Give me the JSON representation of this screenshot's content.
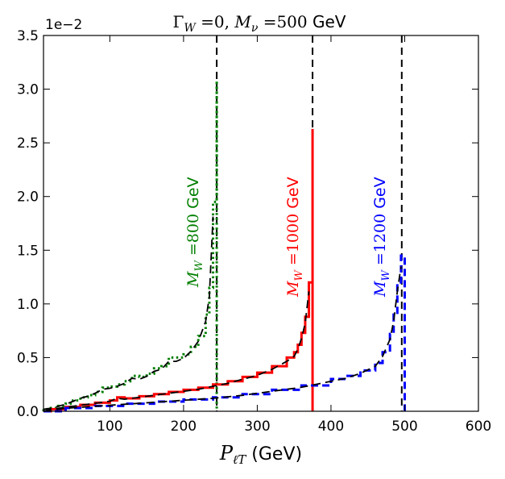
{
  "chart_data": {
    "type": "line",
    "title": "Γ_W = 0, M_ν = 500 GeV",
    "title_parts": {
      "gamma_symbol": "Γ",
      "gamma_sub": "W",
      "gamma_eq": " =0, ",
      "m_symbol": "M",
      "m_sub": "ν",
      "m_eq": " =500",
      "unit": " GeV"
    },
    "xlabel": "P_ℓT (GeV)",
    "xlabel_parts": {
      "symbol": "P",
      "sub": "ℓT",
      "unit": "  (GeV)"
    },
    "ylabel": "",
    "y_scale_label": "1e−2",
    "xlim": [
      10,
      600
    ],
    "ylim": [
      0,
      3.5
    ],
    "xticks": [
      100,
      200,
      300,
      400,
      500,
      600
    ],
    "yticks": [
      0.0,
      0.5,
      1.0,
      1.5,
      2.0,
      2.5,
      3.0,
      3.5
    ],
    "ytick_labels": [
      "0.0",
      "0.5",
      "1.0",
      "1.5",
      "2.0",
      "2.5",
      "3.0",
      "3.5"
    ],
    "grid": false,
    "vlines": [
      245,
      375,
      496
    ],
    "series": [
      {
        "name": "M_W = 800 GeV",
        "label_parts": {
          "symbol": "M",
          "sub": "W",
          "eq": " =800",
          "unit": " GeV"
        },
        "color": "#007f00",
        "style": "dotted",
        "x": [
          10,
          20,
          30,
          40,
          50,
          60,
          70,
          80,
          90,
          100,
          110,
          120,
          130,
          140,
          150,
          160,
          170,
          180,
          190,
          200,
          210,
          220,
          230,
          235,
          240,
          245
        ],
        "y": [
          0.02,
          0.03,
          0.05,
          0.07,
          0.1,
          0.13,
          0.15,
          0.18,
          0.22,
          0.23,
          0.25,
          0.28,
          0.33,
          0.32,
          0.35,
          0.4,
          0.42,
          0.5,
          0.5,
          0.53,
          0.6,
          0.7,
          0.9,
          1.15,
          1.95,
          3.08
        ]
      },
      {
        "name": "M_W = 1000 GeV",
        "label_parts": {
          "symbol": "M",
          "sub": "W",
          "eq": " =1000",
          "unit": " GeV"
        },
        "color": "#ff0000",
        "style": "solid",
        "x": [
          10,
          20,
          40,
          60,
          80,
          100,
          110,
          120,
          140,
          160,
          180,
          200,
          220,
          240,
          260,
          280,
          300,
          320,
          340,
          350,
          355,
          360,
          365,
          370,
          375
        ],
        "y": [
          0.0,
          0.02,
          0.04,
          0.06,
          0.08,
          0.1,
          0.13,
          0.12,
          0.14,
          0.16,
          0.18,
          0.2,
          0.22,
          0.25,
          0.28,
          0.32,
          0.36,
          0.42,
          0.5,
          0.55,
          0.62,
          0.73,
          0.88,
          1.2,
          2.63
        ]
      },
      {
        "name": "M_W = 1200 GeV",
        "label_parts": {
          "symbol": "M",
          "sub": "W",
          "eq": " =1200",
          "unit": " GeV"
        },
        "color": "#0000ff",
        "style": "dashed",
        "x": [
          10,
          40,
          80,
          120,
          160,
          200,
          240,
          280,
          320,
          360,
          400,
          420,
          440,
          460,
          470,
          480,
          485,
          490,
          495,
          500
        ],
        "y": [
          0.0,
          0.03,
          0.05,
          0.07,
          0.09,
          0.11,
          0.13,
          0.16,
          0.2,
          0.24,
          0.3,
          0.33,
          0.38,
          0.45,
          0.55,
          0.72,
          0.9,
          1.2,
          1.45,
          0.05
        ]
      }
    ]
  }
}
